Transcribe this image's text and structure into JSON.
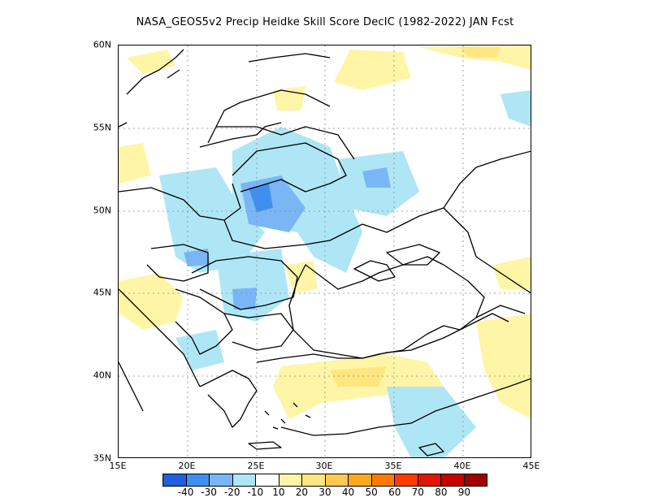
{
  "title": "NASA_GEOS5v2 Precip Heidke Skill Score DecIC (1982-2022) JAN Fcst",
  "map": {
    "lat_ticks": [
      "60N",
      "55N",
      "50N",
      "45N",
      "40N",
      "35N"
    ],
    "lon_ticks": [
      "15E",
      "20E",
      "25E",
      "30E",
      "35E",
      "40E",
      "45E"
    ],
    "lat_range": [
      35,
      60
    ],
    "lon_range": [
      15,
      45
    ],
    "grid": "dotted"
  },
  "colorbar": {
    "colors": [
      "#1f5fe0",
      "#3f8ff0",
      "#7ab6f5",
      "#aee6f5",
      "#ffffff",
      "#fff5a6",
      "#ffe680",
      "#ffc850",
      "#ffa81e",
      "#ff7a00",
      "#ff3c00",
      "#e11500",
      "#c50000",
      "#a00000"
    ],
    "labels": [
      "-40",
      "-30",
      "-20",
      "-10",
      "10",
      "20",
      "30",
      "40",
      "50",
      "60",
      "70",
      "80",
      "90"
    ]
  }
}
